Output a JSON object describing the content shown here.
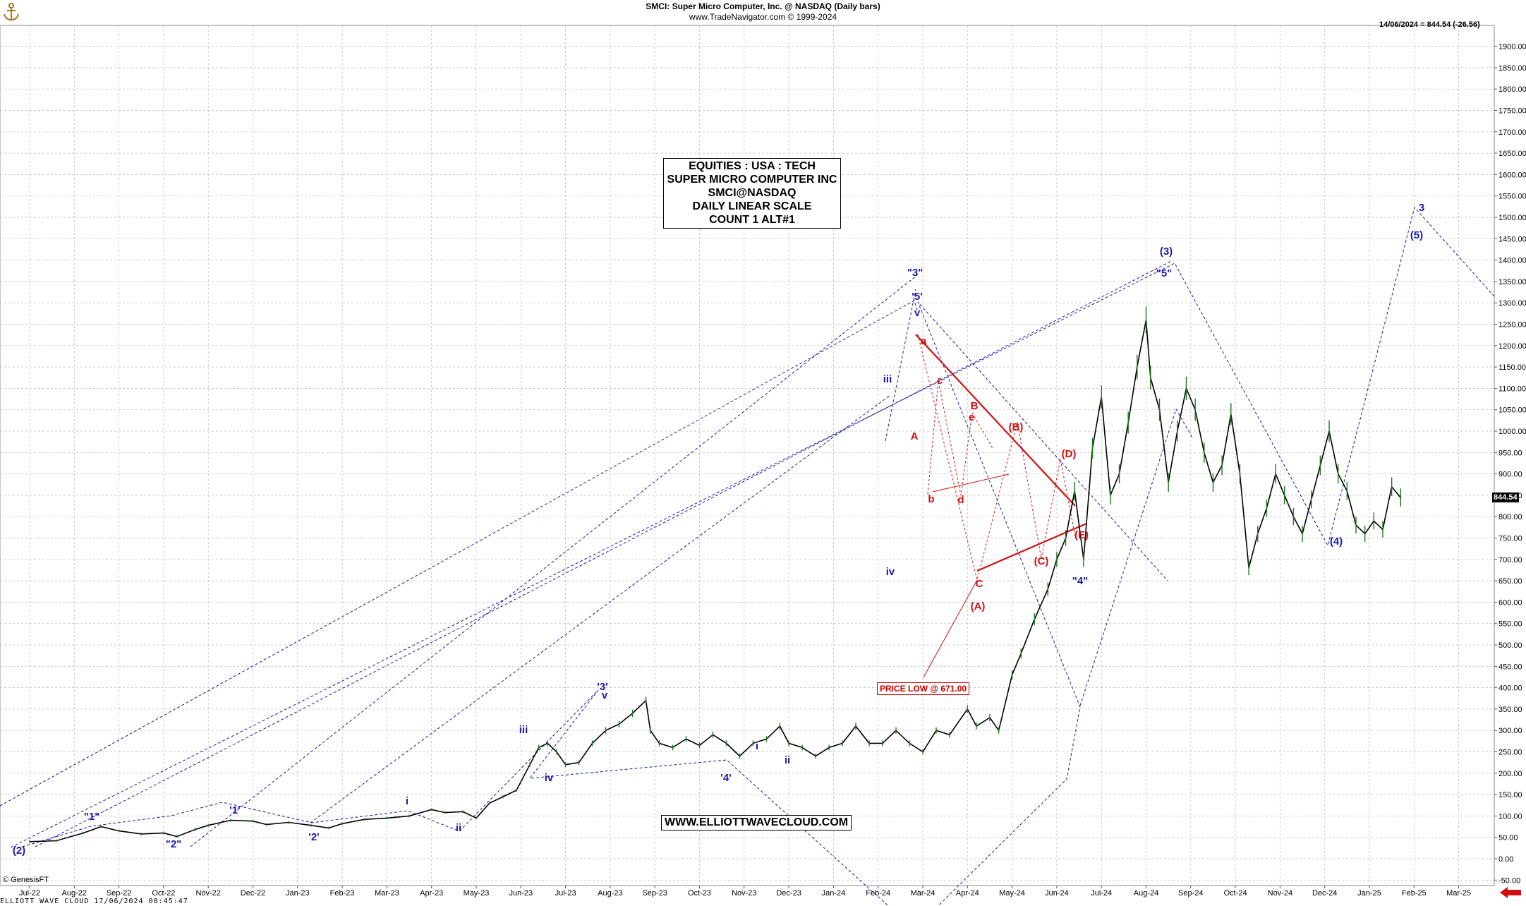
{
  "header": {
    "title": "SMCI:  Super Micro Computer, Inc. @ NASDAQ  (Daily bars)",
    "credit": "www.TradeNavigator.com © 1999-2024"
  },
  "last_price_note": "14/06/2024 = 844.54 (-26.56)",
  "price_tag": "844.54",
  "info_box": [
    "EQUITIES : USA : TECH",
    "SUPER MICRO COMPUTER INC",
    "SMCI@NASDAQ",
    "DAILY LINEAR SCALE",
    "COUNT 1 ALT#1"
  ],
  "website": "WWW.ELLIOTTWAVECLOUD.COM",
  "price_low_note": "PRICE LOW @ 671.00",
  "footer": "ELLIOTT WAVE CLOUD   17/06/2024 08:45:47",
  "genesis": "© GenesisFT",
  "colors": {
    "price": "#000000",
    "blue": "#1a1aaa",
    "red": "#d01010",
    "grid": "#b8b8b8"
  },
  "chart_data": {
    "type": "line",
    "ylim": [
      -50,
      1950
    ],
    "y_ticks": [
      -50,
      0,
      50,
      100,
      150,
      200,
      250,
      300,
      350,
      400,
      450,
      500,
      550,
      600,
      650,
      700,
      750,
      800,
      850,
      900,
      950,
      1000,
      1050,
      1100,
      1150,
      1200,
      1250,
      1300,
      1350,
      1400,
      1450,
      1500,
      1550,
      1600,
      1650,
      1700,
      1750,
      1800,
      1850,
      1900,
      1950
    ],
    "y_tick_labels": [
      "-50.00",
      "0.00",
      "50.00",
      "100.00",
      "150.00",
      "200.00",
      "250.00",
      "300.00",
      "350.00",
      "400.00",
      "450.00",
      "500.00",
      "550.00",
      "600.00",
      "650.00",
      "700.00",
      "750.00",
      "800.00",
      "850.00",
      "900.00",
      "950.00",
      "1000.00",
      "1050.00",
      "1100.00",
      "1150.00",
      "1200.00",
      "1250.00",
      "1300.00",
      "1350.00",
      "1400.00",
      "1450.00",
      "1500.00",
      "1550.00",
      "1600.00",
      "1650.00",
      "1700.00",
      "1750.00",
      "1800.00",
      "1850.00",
      "1900.00",
      "1950.00"
    ],
    "x_tick_labels": [
      "Jul-22",
      "Aug-22",
      "Sep-22",
      "Oct-22",
      "Nov-22",
      "Dec-22",
      "Jan-23",
      "Feb-23",
      "Mar-23",
      "Apr-23",
      "May-23",
      "Jun-23",
      "Jul-23",
      "Aug-23",
      "Sep-23",
      "Oct-23",
      "Nov-23",
      "Dec-23",
      "Jan-24",
      "Feb-24",
      "Mar-24",
      "Apr-24",
      "May-24",
      "Jun-24",
      "Jul-24",
      "Aug-24",
      "Sep-24",
      "Oct-24",
      "Nov-24",
      "Dec-24",
      "Jan-25",
      "Feb-25",
      "Mar-25"
    ],
    "series": [
      {
        "values": [
          [
            0.0,
            40
          ],
          [
            0.6,
            42
          ],
          [
            1.2,
            60
          ],
          [
            1.6,
            75
          ],
          [
            2.0,
            65
          ],
          [
            2.5,
            58
          ],
          [
            3.0,
            60
          ],
          [
            3.3,
            52
          ],
          [
            3.7,
            68
          ],
          [
            4.0,
            78
          ],
          [
            4.5,
            90
          ],
          [
            5.0,
            88
          ],
          [
            5.3,
            80
          ],
          [
            5.8,
            85
          ],
          [
            6.3,
            78
          ],
          [
            6.7,
            72
          ],
          [
            7.0,
            82
          ],
          [
            7.5,
            92
          ],
          [
            8.0,
            95
          ],
          [
            8.5,
            100
          ],
          [
            9.0,
            115
          ],
          [
            9.3,
            108
          ],
          [
            9.7,
            110
          ],
          [
            10.0,
            95
          ],
          [
            10.3,
            130
          ],
          [
            10.6,
            145
          ],
          [
            10.9,
            160
          ],
          [
            11.2,
            220
          ],
          [
            11.4,
            260
          ],
          [
            11.6,
            270
          ],
          [
            11.8,
            250
          ],
          [
            12.0,
            220
          ],
          [
            12.3,
            225
          ],
          [
            12.6,
            270
          ],
          [
            12.9,
            300
          ],
          [
            13.2,
            315
          ],
          [
            13.5,
            340
          ],
          [
            13.8,
            370
          ],
          [
            13.9,
            300
          ],
          [
            14.1,
            270
          ],
          [
            14.4,
            260
          ],
          [
            14.7,
            280
          ],
          [
            15.0,
            265
          ],
          [
            15.3,
            290
          ],
          [
            15.6,
            270
          ],
          [
            15.9,
            240
          ],
          [
            16.2,
            270
          ],
          [
            16.5,
            280
          ],
          [
            16.8,
            310
          ],
          [
            17.0,
            270
          ],
          [
            17.3,
            260
          ],
          [
            17.6,
            240
          ],
          [
            17.9,
            260
          ],
          [
            18.2,
            270
          ],
          [
            18.5,
            310
          ],
          [
            18.8,
            270
          ],
          [
            19.1,
            270
          ],
          [
            19.4,
            300
          ],
          [
            19.7,
            270
          ],
          [
            20.0,
            250
          ],
          [
            20.3,
            300
          ],
          [
            20.6,
            290
          ],
          [
            21.0,
            350
          ],
          [
            21.2,
            310
          ],
          [
            21.5,
            330
          ],
          [
            21.7,
            300
          ],
          [
            22.0,
            430
          ],
          [
            22.2,
            480
          ],
          [
            22.5,
            560
          ],
          [
            22.8,
            630
          ],
          [
            23.0,
            700
          ],
          [
            23.2,
            750
          ],
          [
            23.4,
            860
          ],
          [
            23.6,
            700
          ],
          [
            23.8,
            960
          ],
          [
            24.0,
            1080
          ],
          [
            24.2,
            850
          ],
          [
            24.4,
            900
          ],
          [
            24.6,
            1020
          ],
          [
            24.8,
            1150
          ],
          [
            25.0,
            1260
          ],
          [
            25.1,
            1125
          ],
          [
            25.3,
            1050
          ],
          [
            25.5,
            880
          ],
          [
            25.7,
            1000
          ],
          [
            25.9,
            1100
          ],
          [
            26.1,
            1050
          ],
          [
            26.3,
            950
          ],
          [
            26.5,
            880
          ],
          [
            26.7,
            920
          ],
          [
            26.9,
            1040
          ],
          [
            27.1,
            900
          ],
          [
            27.3,
            680
          ],
          [
            27.5,
            760
          ],
          [
            27.7,
            820
          ],
          [
            27.9,
            900
          ],
          [
            28.1,
            850
          ],
          [
            28.3,
            800
          ],
          [
            28.5,
            760
          ],
          [
            28.7,
            840
          ],
          [
            28.9,
            920
          ],
          [
            29.1,
            1000
          ],
          [
            29.3,
            900
          ],
          [
            29.5,
            860
          ],
          [
            29.7,
            780
          ],
          [
            29.9,
            760
          ],
          [
            30.1,
            790
          ],
          [
            30.3,
            770
          ],
          [
            30.5,
            870
          ],
          [
            30.7,
            844.54
          ]
        ]
      }
    ]
  },
  "wave_labels": {
    "blue": [
      "(2)",
      "\"1\"",
      "\"2\"",
      "'1'",
      "'2'",
      "i",
      "ii",
      "iii",
      "iv",
      "'3'",
      "v",
      "'4'",
      "i",
      "ii",
      "iii",
      "iv",
      "\"3\"",
      "'5'",
      "v",
      "(3)",
      "\"5\"",
      "\"4\"",
      "(4)",
      "(5)",
      "3"
    ],
    "red": [
      "a",
      "A",
      "b",
      "c",
      "d",
      "e",
      "B",
      "C",
      "(A)",
      "(B)",
      "(C)",
      "(D)",
      "(E)"
    ]
  }
}
